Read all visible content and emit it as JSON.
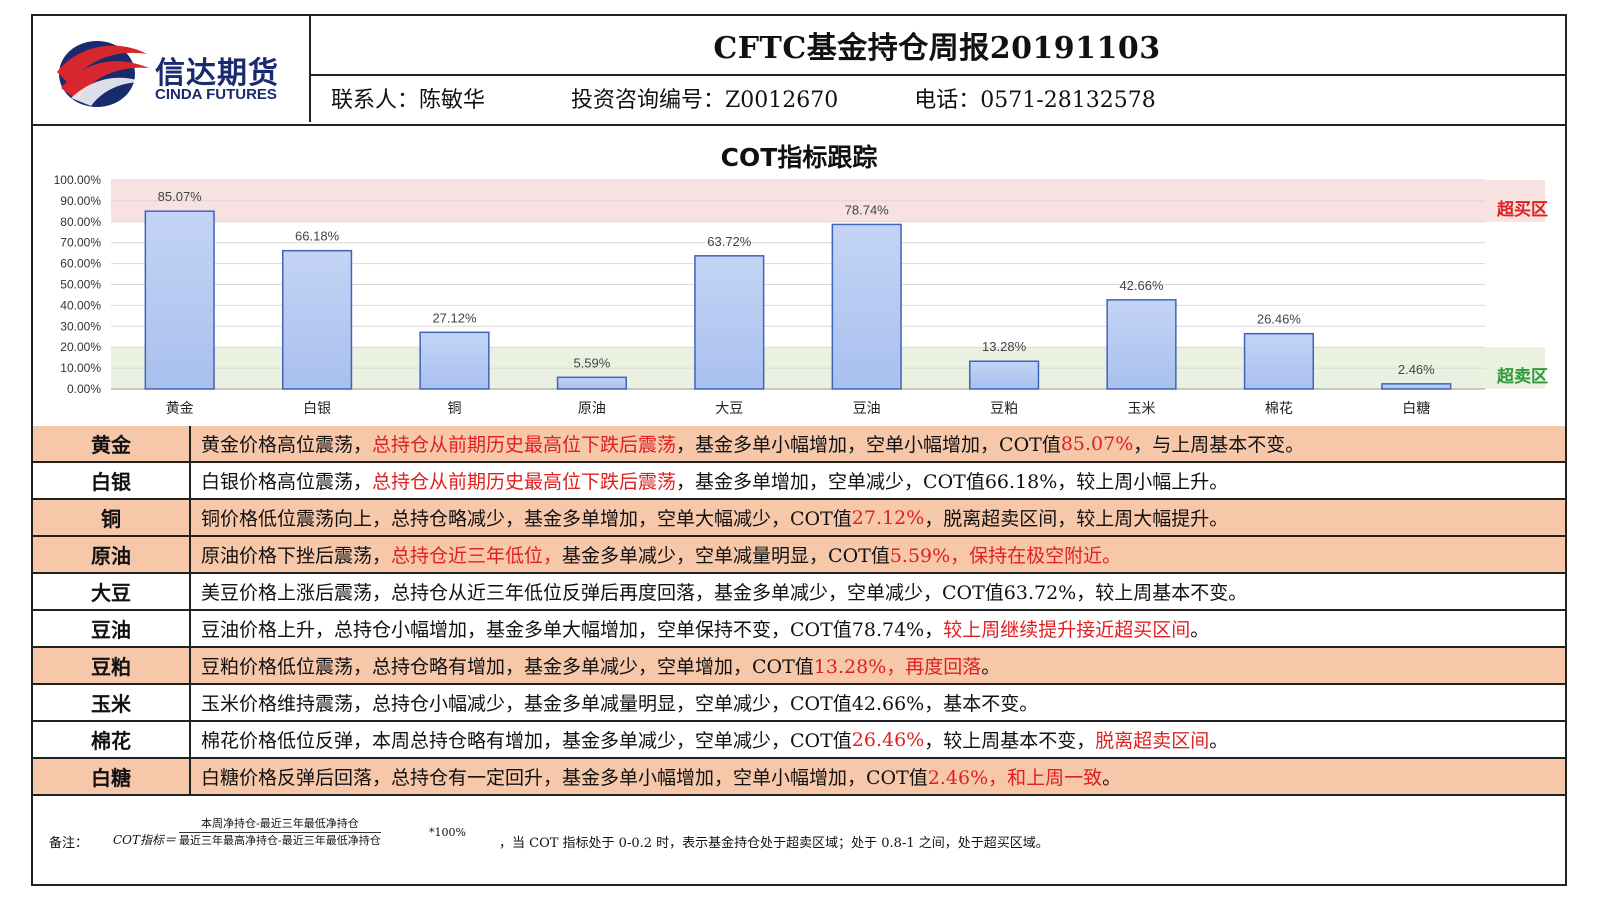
{
  "header": {
    "logo_cn": "信达期货",
    "logo_en": "CINDA FUTURES",
    "title": "CFTC基金持仓周报20191103",
    "contact_label": "联系人：陈敏华",
    "license_label": "投资咨询编号：Z0012670",
    "phone_label": "电话：0571-28132578"
  },
  "colors": {
    "bar_fill_top": "#c3d4f5",
    "bar_fill_bottom": "#a9c0ee",
    "bar_stroke": "#3f64b8",
    "overbought_band": "#f6dcdc",
    "oversold_band": "#e6eedc",
    "highlight_red": "#e02020",
    "row_shade": "#f7c7aa"
  },
  "chart_data": {
    "type": "bar",
    "title": "COT指标跟踪",
    "categories": [
      "黄金",
      "白银",
      "铜",
      "原油",
      "大豆",
      "豆油",
      "豆粕",
      "玉米",
      "棉花",
      "白糖"
    ],
    "values": [
      85.07,
      66.18,
      27.12,
      5.59,
      63.72,
      78.74,
      13.28,
      42.66,
      26.46,
      2.46
    ],
    "data_labels": [
      "85.07%",
      "66.18%",
      "27.12%",
      "5.59%",
      "63.72%",
      "78.74%",
      "13.28%",
      "42.66%",
      "26.46%",
      "2.46%"
    ],
    "y_ticks": [
      "0.00%",
      "10.00%",
      "20.00%",
      "30.00%",
      "40.00%",
      "50.00%",
      "60.00%",
      "70.00%",
      "80.00%",
      "90.00%",
      "100.00%"
    ],
    "ylim": [
      0,
      100
    ],
    "grid": true,
    "bands": [
      {
        "label": "超买区",
        "from": 80,
        "to": 100,
        "color": "#f6dcdc",
        "label_color": "#e02020"
      },
      {
        "label": "超卖区",
        "from": 0,
        "to": 20,
        "color": "#e6eedc",
        "label_color": "#2f9a3a"
      }
    ]
  },
  "table": {
    "rows": [
      {
        "name": "黄金",
        "shade": true,
        "segments": [
          {
            "t": "黄金价格高位震荡，"
          },
          {
            "t": "总持仓从前期历史最高位下跌后震荡",
            "red": true
          },
          {
            "t": "，基金多单小幅增加，空单小幅增加，COT值"
          },
          {
            "t": "85.07%",
            "red": true
          },
          {
            "t": "，与上周基本不变。"
          }
        ]
      },
      {
        "name": "白银",
        "shade": false,
        "segments": [
          {
            "t": "白银价格高位震荡，"
          },
          {
            "t": "总持仓从前期历史最高位下跌后震荡",
            "red": true
          },
          {
            "t": "，基金多单增加，空单减少，COT值66.18%，较上周小幅上升。"
          }
        ]
      },
      {
        "name": "铜",
        "shade": true,
        "segments": [
          {
            "t": "铜价格低位震荡向上，总持仓略减少，基金多单增加，空单大幅减少，COT值"
          },
          {
            "t": "27.12%",
            "red": true
          },
          {
            "t": "，脱离超卖区间，较上周大幅提升。"
          }
        ]
      },
      {
        "name": "原油",
        "shade": true,
        "segments": [
          {
            "t": "原油价格下挫后震荡，"
          },
          {
            "t": "总持仓近三年低位，",
            "red": true
          },
          {
            "t": "基金多单减少，空单减量明显，COT值"
          },
          {
            "t": "5.59%，保持在极空附近。",
            "red": true
          }
        ]
      },
      {
        "name": "大豆",
        "shade": false,
        "segments": [
          {
            "t": "美豆价格上涨后震荡，总持仓从近三年低位反弹后再度回落，基金多单减少，空单减少，COT值63.72%，较上周基本不变。"
          }
        ]
      },
      {
        "name": "豆油",
        "shade": false,
        "segments": [
          {
            "t": "豆油价格上升，总持仓小幅增加，基金多单大幅增加，空单保持不变，COT值78.74%，"
          },
          {
            "t": "较上周继续提升接近超买区间",
            "red": true
          },
          {
            "t": "。"
          }
        ]
      },
      {
        "name": "豆粕",
        "shade": true,
        "segments": [
          {
            "t": "豆粕价格低位震荡，总持仓略有增加，基金多单减少，空单增加，COT值"
          },
          {
            "t": "13.28%，再度回落",
            "red": true
          },
          {
            "t": "。"
          }
        ]
      },
      {
        "name": "玉米",
        "shade": false,
        "segments": [
          {
            "t": "玉米价格维持震荡，总持仓小幅减少，基金多单减量明显，空单减少，COT值42.66%，基本不变。"
          }
        ]
      },
      {
        "name": "棉花",
        "shade": false,
        "segments": [
          {
            "t": "棉花价格低位反弹，本周总持仓略有增加，基金多单减少，空单减少，COT值"
          },
          {
            "t": "26.46%",
            "red": true
          },
          {
            "t": "，较上周基本不变，"
          },
          {
            "t": "脱离超卖区间",
            "red": true
          },
          {
            "t": "。"
          }
        ]
      },
      {
        "name": "白糖",
        "shade": true,
        "segments": [
          {
            "t": "白糖价格反弹后回落，总持仓有一定回升，基金多单小幅增加，空单小幅增加，COT值"
          },
          {
            "t": "2.46%，和上周一致",
            "red": true
          },
          {
            "t": "。"
          }
        ]
      }
    ]
  },
  "note": {
    "label": "备注：",
    "formula_name": "COT指标＝",
    "numerator": "本周净持仓-最近三年最低净持仓",
    "denominator": "最近三年最高净持仓-最近三年最低净持仓",
    "multiplier": "*100%",
    "text": "，当 COT 指标处于 0-0.2 时，表示基金持仓处于超卖区域；处于 0.8-1 之间，处于超买区域。"
  }
}
